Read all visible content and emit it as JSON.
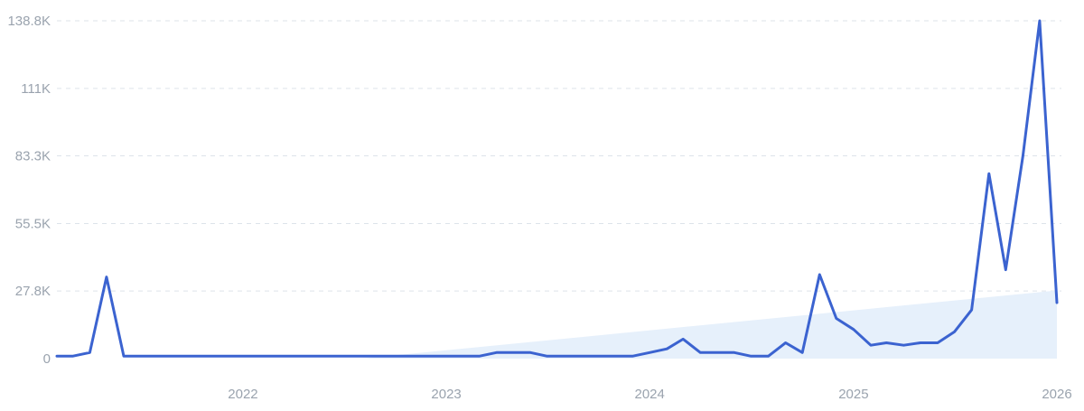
{
  "chart_data": {
    "type": "line",
    "title": "",
    "xlabel": "",
    "ylabel": "",
    "ylim": [
      0,
      138800
    ],
    "y_ticks": [
      0,
      27800,
      55500,
      83300,
      111000,
      138800
    ],
    "y_tick_labels": [
      "0",
      "27.8K",
      "55.5K",
      "83.3K",
      "111K",
      "138.8K"
    ],
    "x_tick_labels": [
      "2022",
      "2023",
      "2024",
      "2025",
      "2026"
    ],
    "x_tick_dates": [
      "2022-01-01",
      "2023-01-01",
      "2024-01-01",
      "2025-01-01",
      "2026-01-01"
    ],
    "xlim": [
      "2021-02-01",
      "2026-01-01"
    ],
    "grid": "horizontal-dashed",
    "legend": "none",
    "colors": {
      "line": "#3b63d0",
      "trend_fill": "#e6f0fb",
      "grid": "#dde3ea",
      "tick_text": "#9aa3ae"
    },
    "trend": {
      "x": [
        "2022-08-01",
        "2026-01-01"
      ],
      "y": [
        0,
        28000
      ]
    },
    "series": [
      {
        "x": [
          "2021-02-01",
          "2021-03-01",
          "2021-04-01",
          "2021-05-01",
          "2021-06-01",
          "2021-07-01",
          "2021-08-01",
          "2021-09-01",
          "2021-10-01",
          "2021-11-01",
          "2021-12-01",
          "2022-01-01",
          "2022-02-01",
          "2022-03-01",
          "2022-04-01",
          "2022-05-01",
          "2022-06-01",
          "2022-07-01",
          "2022-08-01",
          "2022-09-01",
          "2022-10-01",
          "2022-11-01",
          "2022-12-01",
          "2023-01-01",
          "2023-02-01",
          "2023-03-01",
          "2023-04-01",
          "2023-05-01",
          "2023-06-01",
          "2023-07-01",
          "2023-08-01",
          "2023-09-01",
          "2023-10-01",
          "2023-11-01",
          "2023-12-01",
          "2024-01-01",
          "2024-02-01",
          "2024-03-01",
          "2024-04-01",
          "2024-05-01",
          "2024-06-01",
          "2024-07-01",
          "2024-08-01",
          "2024-09-01",
          "2024-10-01",
          "2024-11-01",
          "2024-12-01",
          "2025-01-01",
          "2025-02-01",
          "2025-03-01",
          "2025-04-01",
          "2025-05-01",
          "2025-06-01",
          "2025-07-01",
          "2025-08-01",
          "2025-09-01",
          "2025-10-01",
          "2025-11-01",
          "2025-12-01",
          "2026-01-01"
        ],
        "y": [
          1000,
          1000,
          2500,
          33500,
          1000,
          1000,
          1000,
          1000,
          1000,
          1000,
          1000,
          1000,
          1000,
          1000,
          1000,
          1000,
          1000,
          1000,
          1000,
          1000,
          1000,
          1000,
          1000,
          1000,
          1000,
          1000,
          2500,
          2500,
          2500,
          1000,
          1000,
          1000,
          1000,
          1000,
          1000,
          2500,
          4000,
          8000,
          2500,
          2500,
          2500,
          1000,
          1000,
          6500,
          2500,
          34500,
          16500,
          12000,
          5500,
          6500,
          5500,
          6500,
          6500,
          11000,
          20000,
          76000,
          36500,
          83300,
          138800,
          23000
        ]
      }
    ]
  }
}
